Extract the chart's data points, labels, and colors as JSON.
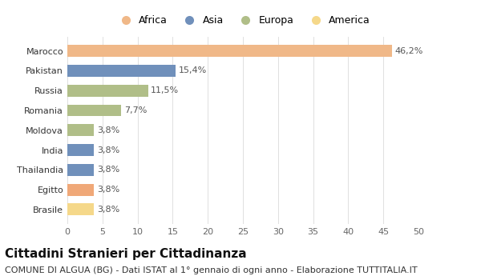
{
  "categories": [
    "Brasile",
    "Egitto",
    "Thailandia",
    "India",
    "Moldova",
    "Romania",
    "Russia",
    "Pakistan",
    "Marocco"
  ],
  "values": [
    3.8,
    3.8,
    3.8,
    3.8,
    3.8,
    7.7,
    11.5,
    15.4,
    46.2
  ],
  "labels": [
    "3,8%",
    "3,8%",
    "3,8%",
    "3,8%",
    "3,8%",
    "7,7%",
    "11,5%",
    "15,4%",
    "46,2%"
  ],
  "colors": [
    "#f5d88a",
    "#f0a878",
    "#7090bb",
    "#7090bb",
    "#b0be88",
    "#b0be88",
    "#b0be88",
    "#7090bb",
    "#f0b888"
  ],
  "legend": [
    {
      "label": "Africa",
      "color": "#f0b888"
    },
    {
      "label": "Asia",
      "color": "#7090bb"
    },
    {
      "label": "Europa",
      "color": "#b0be88"
    },
    {
      "label": "America",
      "color": "#f5d88a"
    }
  ],
  "xlim": [
    0,
    50
  ],
  "xticks": [
    0,
    5,
    10,
    15,
    20,
    25,
    30,
    35,
    40,
    45,
    50
  ],
  "title": "Cittadini Stranieri per Cittadinanza",
  "subtitle": "COMUNE DI ALGUA (BG) - Dati ISTAT al 1° gennaio di ogni anno - Elaborazione TUTTITALIA.IT",
  "bg_color": "#ffffff",
  "grid_color": "#e0e0e0",
  "bar_height": 0.6,
  "title_fontsize": 11,
  "subtitle_fontsize": 8,
  "label_fontsize": 8,
  "tick_fontsize": 8,
  "legend_fontsize": 9
}
